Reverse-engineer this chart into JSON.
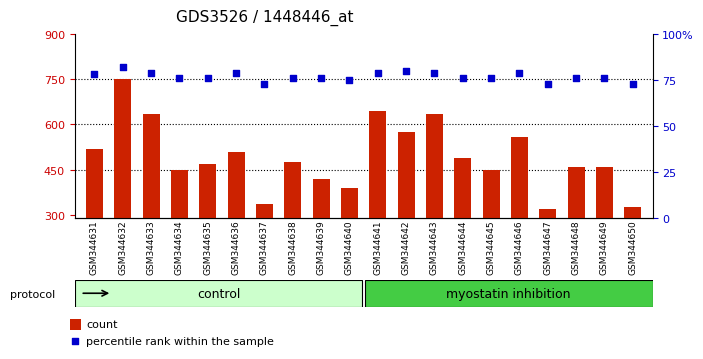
{
  "title": "GDS3526 / 1448446_at",
  "samples": [
    "GSM344631",
    "GSM344632",
    "GSM344633",
    "GSM344634",
    "GSM344635",
    "GSM344636",
    "GSM344637",
    "GSM344638",
    "GSM344639",
    "GSM344640",
    "GSM344641",
    "GSM344642",
    "GSM344643",
    "GSM344644",
    "GSM344645",
    "GSM344646",
    "GSM344647",
    "GSM344648",
    "GSM344649",
    "GSM344650"
  ],
  "counts": [
    520,
    750,
    635,
    450,
    470,
    510,
    335,
    475,
    420,
    390,
    645,
    575,
    635,
    490,
    450,
    560,
    320,
    460,
    460,
    325
  ],
  "percentiles": [
    78,
    82,
    79,
    76,
    76,
    79,
    73,
    76,
    76,
    75,
    79,
    80,
    79,
    76,
    76,
    79,
    73,
    76,
    76,
    73
  ],
  "ylim_left": [
    290,
    900
  ],
  "ylim_right": [
    0,
    100
  ],
  "yticks_left": [
    300,
    450,
    600,
    750,
    900
  ],
  "yticks_right": [
    0,
    25,
    50,
    75,
    100
  ],
  "ytick_labels_right": [
    "0",
    "25",
    "50",
    "75",
    "100%"
  ],
  "bar_color": "#cc2200",
  "dot_color": "#0000cc",
  "control_color": "#ccffcc",
  "myostatin_color": "#44cc44",
  "control_label": "control",
  "myostatin_label": "myostatin inhibition",
  "protocol_label": "protocol",
  "legend_count": "count",
  "legend_percentile": "percentile rank within the sample",
  "n_control": 10,
  "n_myostatin": 10,
  "xlabel_color": "#cc0000",
  "ylabel_right_color": "#0000cc"
}
